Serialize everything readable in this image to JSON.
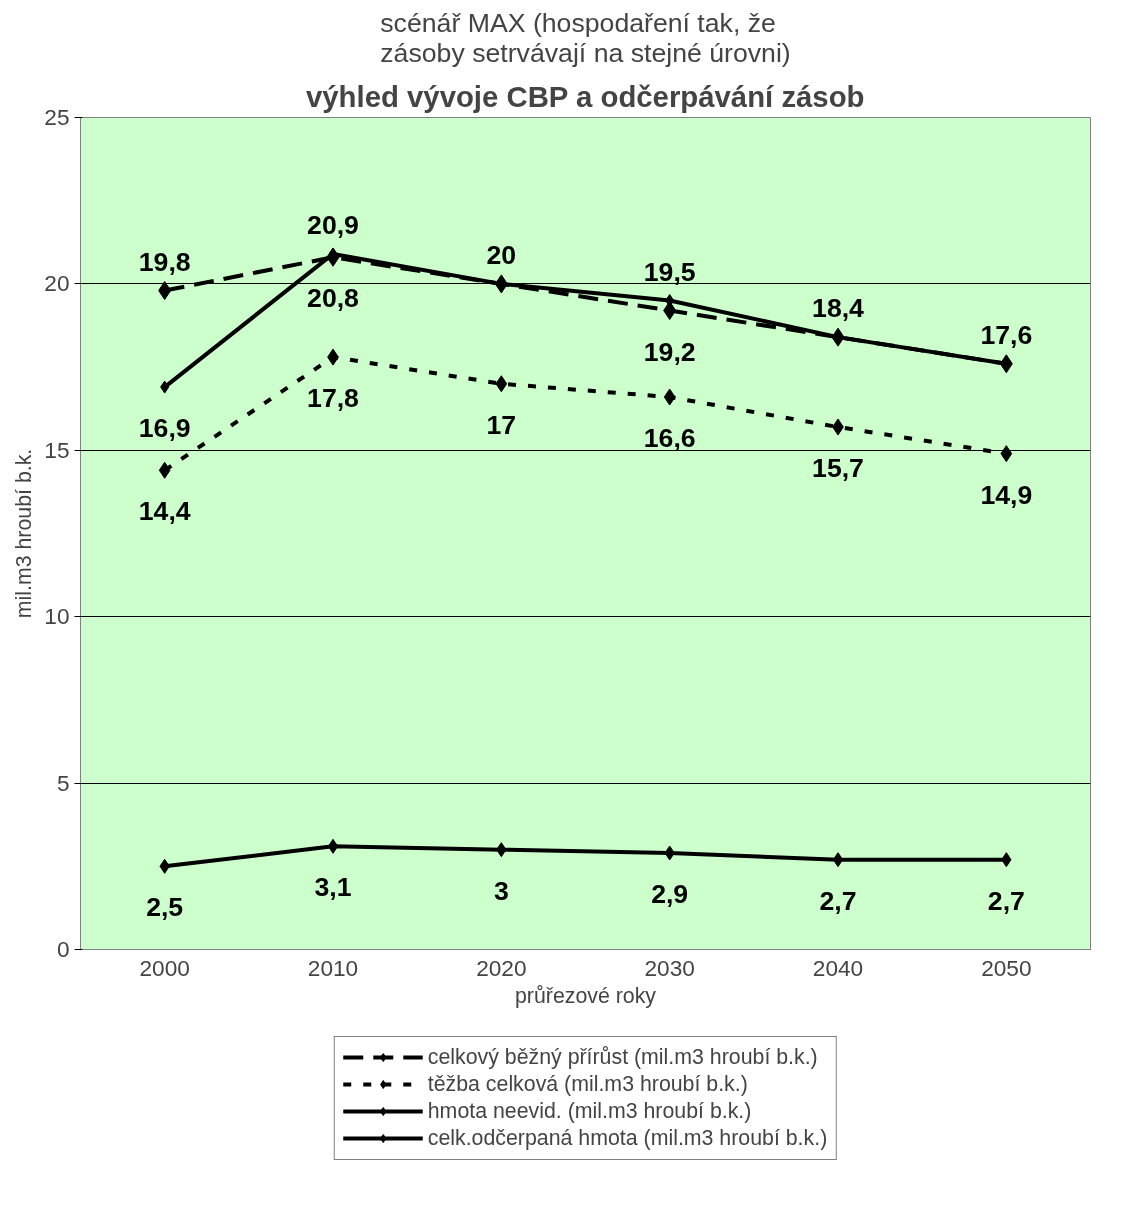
{
  "chart_data": {
    "type": "line",
    "title": "scénář MAX (hospodaření tak, že zásoby setrvávají na stejné úrovni)",
    "subtitle": "výhled vývoje CBP a odčerpávání zásob",
    "xlabel": "průřezové roky",
    "ylabel": "mil.m3 hroubí b.k.",
    "categories": [
      "2000",
      "2010",
      "2020",
      "2030",
      "2040",
      "2050"
    ],
    "ylim": [
      0,
      25
    ],
    "yticks": [
      0,
      5,
      10,
      15,
      20,
      25
    ],
    "grid": "y",
    "legend": "bottom",
    "marker": "diamond",
    "series": [
      {
        "name": "celkový běžný přírůst (mil.m3 hroubí b.k.)",
        "color": "#000000",
        "line_style": "dashed",
        "values": [
          19.8,
          20.8,
          20,
          19.2,
          18.4,
          17.6
        ],
        "value_labels": [
          "19,8",
          "20,8",
          null,
          "19,2",
          null,
          null
        ]
      },
      {
        "name": "těžba celková (mil.m3 hroubí b.k.)",
        "color": "#000000",
        "line_style": "dotted",
        "values": [
          14.4,
          17.8,
          17,
          16.6,
          15.7,
          14.9
        ],
        "value_labels": [
          "14,4",
          "17,8",
          "17",
          "16,6",
          "15,7",
          "14,9"
        ]
      },
      {
        "name": "hmota neevid. (mil.m3 hroubí b.k.)",
        "color": "#000000",
        "line_style": "solid",
        "values": [
          2.5,
          3.1,
          3,
          2.9,
          2.7,
          2.7
        ],
        "value_labels": [
          "2,5",
          "3,1",
          "3",
          "2,9",
          "2,7",
          "2,7"
        ]
      },
      {
        "name": "celk.odčerpaná hmota (mil.m3 hroubí b.k.)",
        "color": "#000000",
        "line_style": "solid",
        "values": [
          16.9,
          20.9,
          20,
          19.5,
          18.4,
          17.6
        ],
        "value_labels": [
          "16,9",
          "20,9",
          "20",
          "19,5",
          "18,4",
          "17,6"
        ]
      }
    ]
  }
}
